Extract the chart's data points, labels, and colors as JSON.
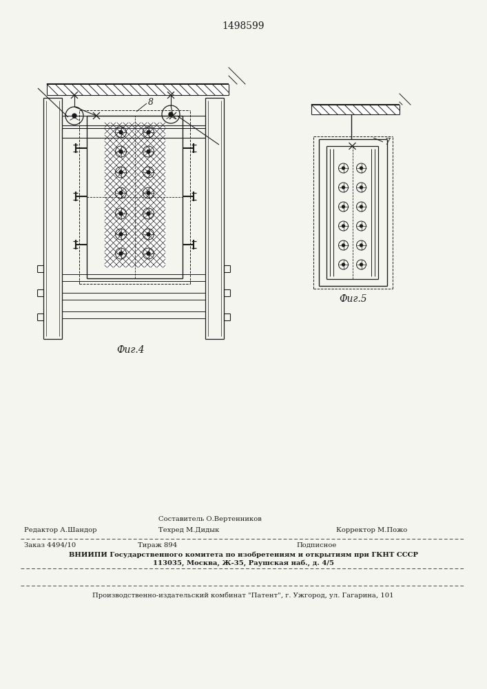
{
  "patent_number": "1498599",
  "fig4_label": "Фиг.4",
  "fig5_label": "Фиг.5",
  "label_8": "8",
  "label_7": "7",
  "bg_color": "#f5f5f0",
  "line_color": "#1a1a1a",
  "footer_line1_left": "Редактор А.Шандор",
  "footer_line1_center_top": "Составитель О.Вертенников",
  "footer_line1_center_bot": "Техред М.Дидык",
  "footer_line1_right": "Корректор М.Пожо",
  "footer_line2a": "Заказ 4494/10",
  "footer_line2b": "Тираж 894",
  "footer_line2c": "Подписное",
  "footer_line3": "ВНИИПИ Государственного комитета по изобретениям и открытиям при ГКНТ СССР",
  "footer_line4": "113035, Москва, Ж-35, Раушская наб., д. 4/5",
  "footer_line5": "Производственно-издательский комбинат \"Патент\", г. Ужгород, ул. Гагарина, 101"
}
